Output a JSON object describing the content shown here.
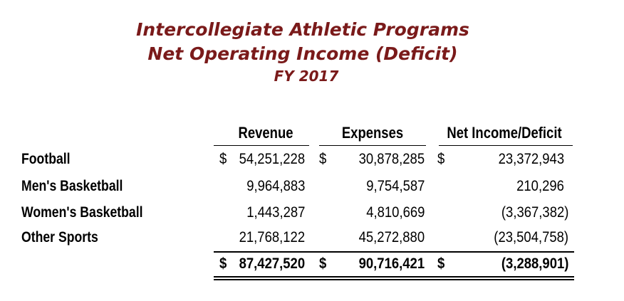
{
  "title": {
    "line1": "Intercollegiate Athletic Programs",
    "line2": "Net Operating Income (Deficit)",
    "line3": "FY 2017"
  },
  "colors": {
    "title": "#7a1a1a",
    "text": "#000000"
  },
  "table": {
    "headers": {
      "revenue": "Revenue",
      "expenses": "Expenses",
      "net": "Net Income/Deficit"
    },
    "rows": [
      {
        "label": "Football",
        "revenue": "54,251,228",
        "expenses": "30,878,285",
        "net": "23,372,943",
        "revenue_cur": "$",
        "expenses_cur": "$",
        "net_cur": "$"
      },
      {
        "label": "Men's Basketball",
        "revenue": "9,964,883",
        "expenses": "9,754,587",
        "net": "210,296"
      },
      {
        "label": "Women's Basketball",
        "revenue": "1,443,287",
        "expenses": "4,810,669",
        "net": "(3,367,382)"
      },
      {
        "label": "Other Sports",
        "revenue": "21,768,122",
        "expenses": "45,272,880",
        "net": "(23,504,758)"
      }
    ],
    "total": {
      "revenue_cur": "$",
      "revenue": "87,427,520",
      "expenses_cur": "$",
      "expenses": "90,716,421",
      "net_cur": "$",
      "net": "(3,288,901)"
    }
  }
}
